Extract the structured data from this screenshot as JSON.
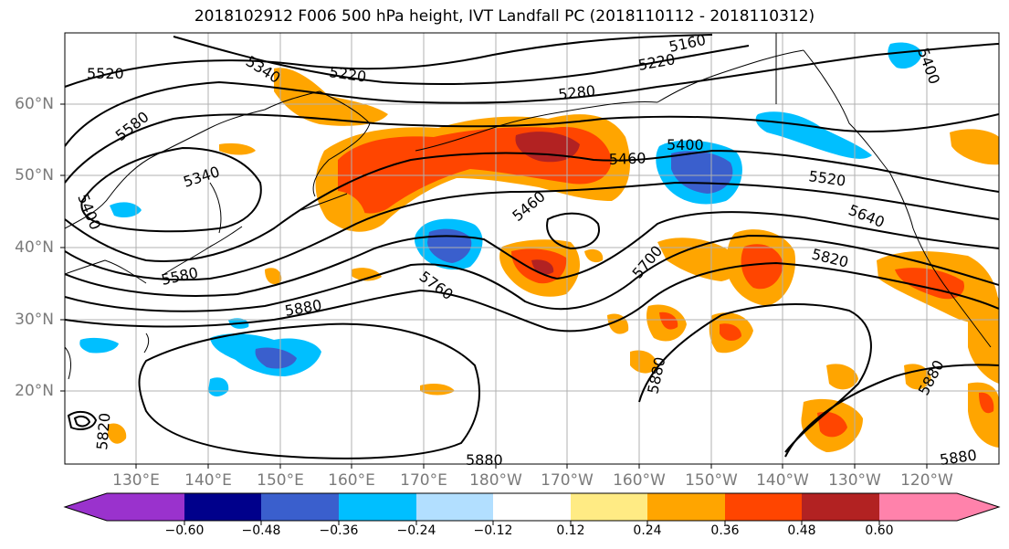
{
  "title": "2018102912 F006 500 hPa height, IVT Landfall PC (2018110112 - 2018110312)",
  "lat_labels": [
    "60°N",
    "50°N",
    "40°N",
    "30°N",
    "20°N"
  ],
  "lon_labels": [
    "130°E",
    "140°E",
    "150°E",
    "160°E",
    "170°E",
    "180°W",
    "170°W",
    "160°W",
    "150°W",
    "140°W",
    "130°W",
    "120°W"
  ],
  "contour_labels": [
    "5520",
    "5340",
    "5220",
    "5160",
    "5220",
    "5280",
    "5400",
    "5580",
    "5340",
    "5400",
    "5460",
    "5460",
    "5400",
    "5520",
    "5640",
    "5580",
    "5760",
    "5700",
    "5820",
    "5880",
    "5880",
    "5880",
    "5880",
    "5820",
    "5880"
  ],
  "colorbar": {
    "ticks": [
      "−0.60",
      "−0.48",
      "−0.36",
      "−0.24",
      "−0.12",
      "0.12",
      "0.24",
      "0.36",
      "0.48",
      "0.60"
    ],
    "colors": [
      "#9a32cd",
      "#00008b",
      "#3a5fcd",
      "#00bfff",
      "#b2dfff",
      "#ffffff",
      "#ffeb84",
      "#ffa500",
      "#ff4500",
      "#b22222",
      "#ff82ab",
      "#ffffff"
    ]
  }
}
